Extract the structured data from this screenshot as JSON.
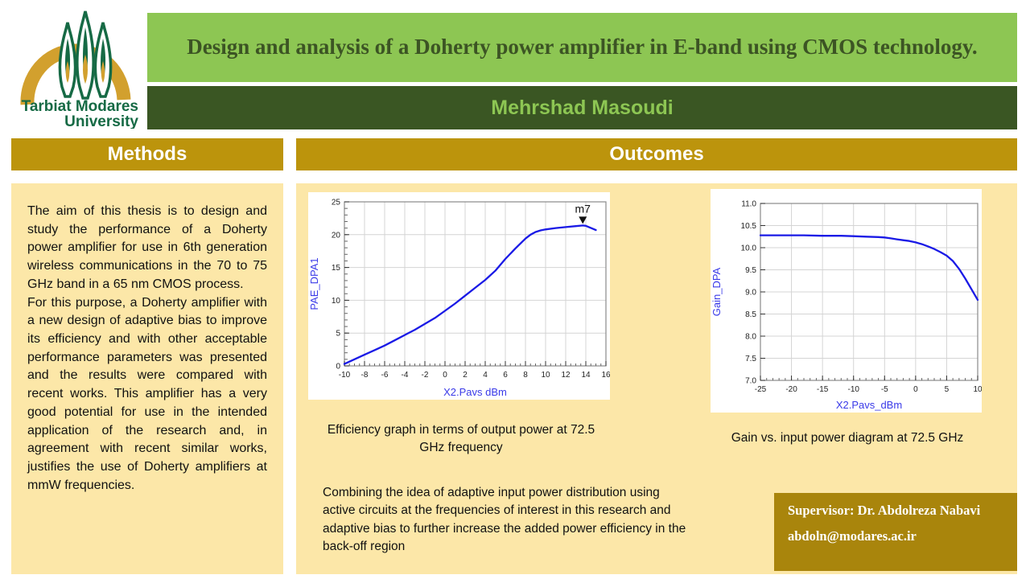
{
  "logo": {
    "line1": "Tarbiat Modares",
    "line2": "University"
  },
  "header": {
    "title": "Design and analysis of a Doherty power amplifier in E-band using CMOS technology.",
    "author": "Mehrshad Masoudi"
  },
  "colors": {
    "title_bar_green": "#8DC653",
    "author_bar_green": "#3A5623",
    "title_text_green": "#3C5424",
    "section_gold": "#BC940C",
    "supervisor_gold": "#A9850C",
    "panel_yellow": "#FCE7A8",
    "chart_line_blue": "#1A1AE6",
    "chart_label_blue": "#3A3AE8"
  },
  "methods": {
    "heading": "Methods",
    "p1": "The aim of this thesis is to design and study the performance of a Doherty power amplifier for use in 6th generation wireless communications in the 70 to 75 GHz band in a 65 nm CMOS process.",
    "p2": "For this purpose, a Doherty amplifier with a new design of adaptive bias to improve its efficiency and with other acceptable performance parameters was presented and the results were compared with recent works. This amplifier has a very good potential for use in the intended application of the research and, in agreement with recent similar works, justifies the use of Doherty amplifiers at mmW frequencies."
  },
  "outcomes": {
    "heading": "Outcomes",
    "caption_efficiency": "Efficiency graph in terms of output power at 72.5 GHz frequency",
    "caption_gain": "Gain vs. input power diagram at 72.5 GHz",
    "paragraph": "Combining the idea of adaptive input power distribution using active circuits at the frequencies of interest in this research and adaptive bias to further increase the added power efficiency in the back-off region"
  },
  "supervisor": {
    "name": "Supervisor: Dr. Abdolreza Nabavi",
    "email": "abdoln@modares.ac.ir"
  },
  "chart_data": [
    {
      "type": "line",
      "title": "",
      "xlabel": "X2.Pavs dBm",
      "ylabel": "PAE_DPA1",
      "xlim": [
        -10,
        16
      ],
      "ylim": [
        0,
        25
      ],
      "xticks": [
        -10,
        -8,
        -6,
        -4,
        -2,
        0,
        2,
        4,
        6,
        8,
        10,
        12,
        14,
        16
      ],
      "yticks": [
        0,
        5,
        10,
        15,
        20,
        25
      ],
      "xminor": 0.5,
      "yminor": 1,
      "ytick_decimals": 0,
      "grid": true,
      "line_color": "#1A1AE6",
      "label_color": "#3A3AE8",
      "x": [
        -10,
        -9,
        -8,
        -7,
        -6,
        -5,
        -4,
        -3,
        -2,
        -1,
        0,
        1,
        2,
        3,
        4,
        5,
        6,
        7,
        8,
        8.5,
        9,
        9.5,
        10,
        11,
        12,
        13,
        13.7,
        14,
        15
      ],
      "y": [
        0.3,
        1.0,
        1.7,
        2.4,
        3.1,
        3.9,
        4.7,
        5.5,
        6.4,
        7.3,
        8.4,
        9.5,
        10.7,
        11.9,
        13.1,
        14.5,
        16.3,
        17.9,
        19.4,
        20.0,
        20.4,
        20.65,
        20.8,
        21.0,
        21.15,
        21.3,
        21.4,
        21.35,
        20.7
      ],
      "marker": {
        "name": "m7",
        "x": 13.7,
        "y": 21.4
      }
    },
    {
      "type": "line",
      "title": "",
      "xlabel": "X2.Pavs_dBm",
      "ylabel": "Gain_DPA",
      "xlim": [
        -25,
        10
      ],
      "ylim": [
        7,
        11
      ],
      "xticks": [
        -25,
        -20,
        -15,
        -10,
        -5,
        0,
        5,
        10
      ],
      "yticks": [
        7,
        7.5,
        8,
        8.5,
        9,
        9.5,
        10,
        10.5,
        11
      ],
      "xminor": 1,
      "yminor": 0,
      "ytick_decimals": 1,
      "grid": true,
      "line_color": "#1A1AE6",
      "label_color": "#3A3AE8",
      "x": [
        -25,
        -22,
        -20,
        -18,
        -15,
        -12,
        -10,
        -8,
        -6,
        -5,
        -4,
        -3,
        -2,
        -1,
        0,
        1,
        2,
        3,
        4,
        5,
        6,
        7,
        8,
        9,
        10
      ],
      "y": [
        10.28,
        10.28,
        10.28,
        10.28,
        10.27,
        10.27,
        10.26,
        10.25,
        10.24,
        10.23,
        10.21,
        10.19,
        10.17,
        10.15,
        10.12,
        10.08,
        10.03,
        9.97,
        9.9,
        9.82,
        9.7,
        9.52,
        9.3,
        9.06,
        8.82
      ]
    }
  ]
}
